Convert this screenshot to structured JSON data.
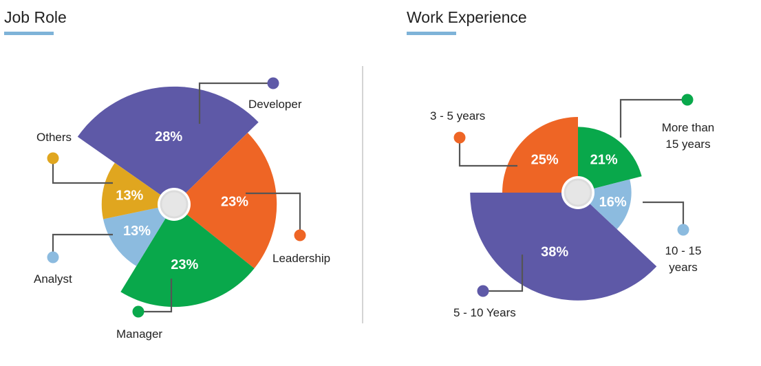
{
  "colors": {
    "accent_underline": "#7eb3d8",
    "purple": "#5e59a7",
    "orange": "#ee6525",
    "green": "#09a84b",
    "light_blue": "#8cbbdf",
    "mustard": "#e0a61f",
    "leader_line": "#555555",
    "hub_ring": "#dcdcdc",
    "hub_fill": "#e6e6e6"
  },
  "job_role": {
    "title": "Job Role"
  },
  "work_experience": {
    "title": "Work Experience"
  },
  "chart_data": [
    {
      "type": "pie",
      "variant": "polar-area",
      "title": "Job Role",
      "slices": [
        {
          "label": "Developer",
          "value": 28,
          "value_label": "28%",
          "color_key": "purple"
        },
        {
          "label": "Leadership",
          "value": 23,
          "value_label": "23%",
          "color_key": "orange"
        },
        {
          "label": "Manager",
          "value": 23,
          "value_label": "23%",
          "color_key": "green"
        },
        {
          "label": "Analyst",
          "value": 13,
          "value_label": "13%",
          "color_key": "light_blue"
        },
        {
          "label": "Others",
          "value": 13,
          "value_label": "13%",
          "color_key": "mustard"
        }
      ]
    },
    {
      "type": "pie",
      "variant": "polar-area",
      "title": "Work Experience",
      "slices": [
        {
          "label": "More than 15 years",
          "label_lines": [
            "More than",
            "15 years"
          ],
          "value": 21,
          "value_label": "21%",
          "color_key": "green"
        },
        {
          "label": "10 - 15 years",
          "label_lines": [
            "10 - 15",
            "years"
          ],
          "value": 16,
          "value_label": "16%",
          "color_key": "light_blue"
        },
        {
          "label": "5 - 10 Years",
          "label_lines": [
            "5 - 10 Years"
          ],
          "value": 38,
          "value_label": "38%",
          "color_key": "purple"
        },
        {
          "label": "3 - 5 years",
          "label_lines": [
            "3 - 5 years"
          ],
          "value": 25,
          "value_label": "25%",
          "color_key": "orange"
        }
      ]
    }
  ]
}
